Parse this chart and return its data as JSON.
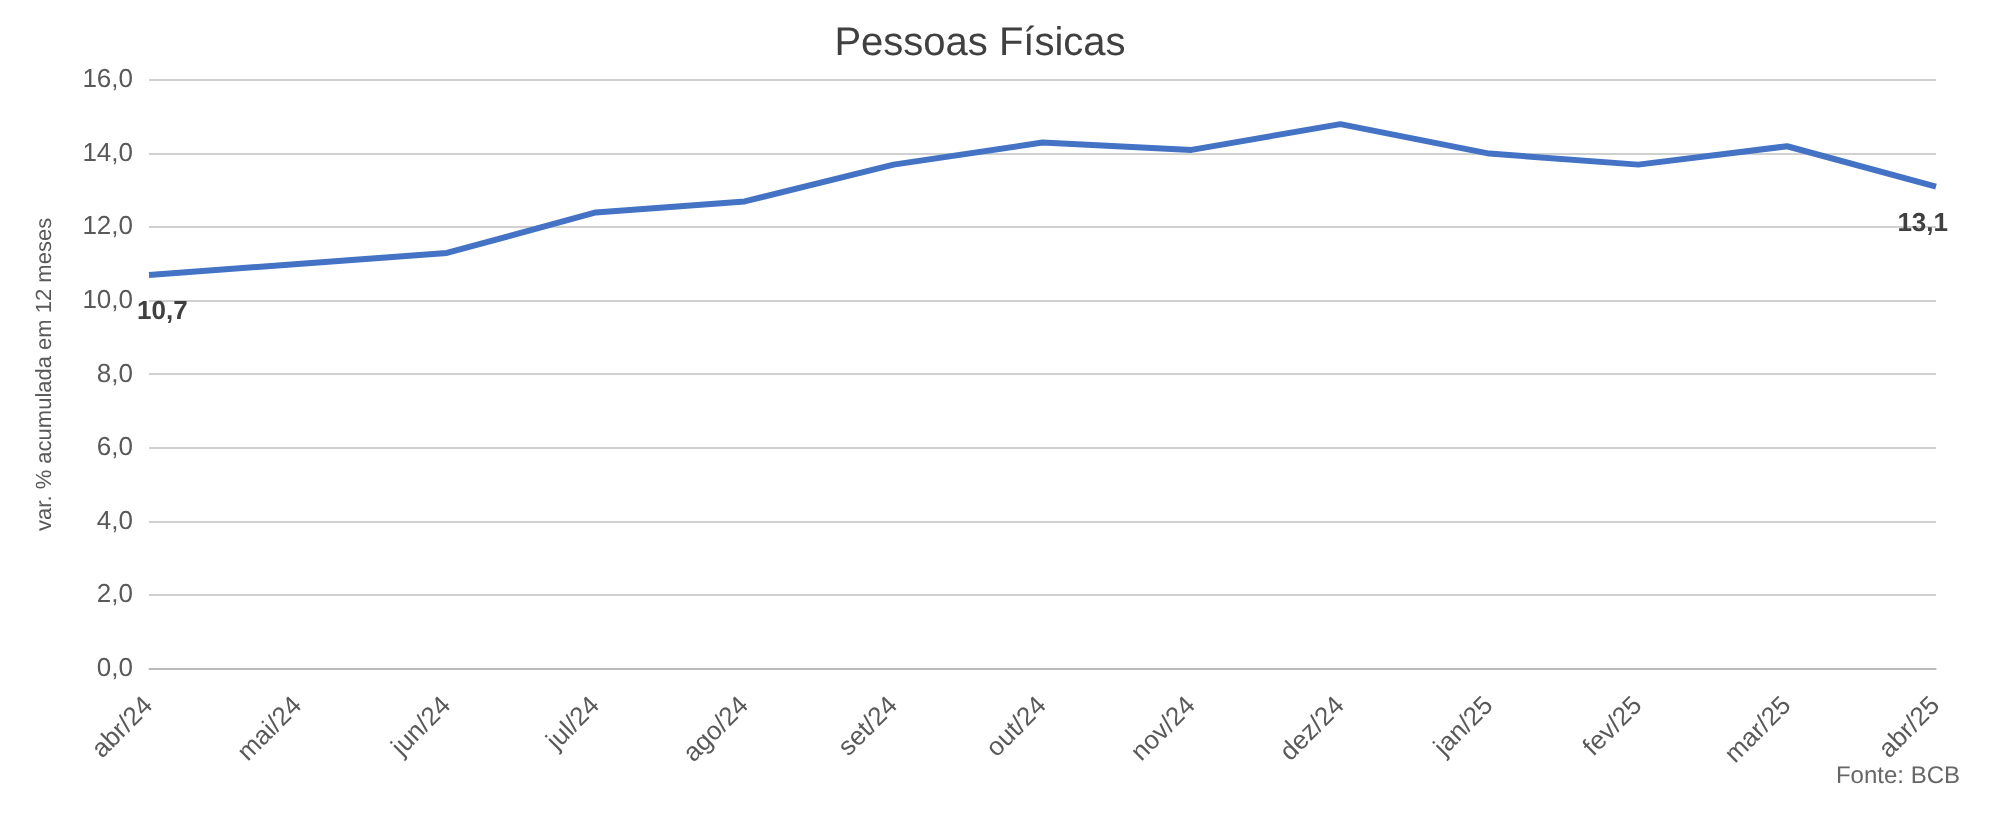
{
  "chart_data": {
    "type": "line",
    "title": "Pessoas Físicas",
    "ylabel": "var. % acumulada em 12 meses",
    "categories": [
      "abr/24",
      "mai/24",
      "jun/24",
      "jul/24",
      "ago/24",
      "set/24",
      "out/24",
      "nov/24",
      "dez/24",
      "jan/25",
      "fev/25",
      "mar/25",
      "abr/25"
    ],
    "series": [
      {
        "color": "#4472c4",
        "values": [
          10.7,
          11.0,
          11.3,
          12.4,
          12.7,
          13.7,
          14.3,
          14.1,
          14.8,
          14.0,
          13.7,
          14.2,
          13.1
        ],
        "value_labels": [
          "10,7",
          null,
          null,
          null,
          null,
          null,
          null,
          null,
          null,
          null,
          null,
          null,
          "13,1"
        ]
      }
    ],
    "ylim": [
      0,
      16
    ],
    "yticks": [
      {
        "value": 0,
        "label": "0,0"
      },
      {
        "value": 2,
        "label": "2,0"
      },
      {
        "value": 4,
        "label": "4,0"
      },
      {
        "value": 6,
        "label": "6,0"
      },
      {
        "value": 8,
        "label": "8,0"
      },
      {
        "value": 10,
        "label": "10,0"
      },
      {
        "value": 12,
        "label": "12,0"
      },
      {
        "value": 14,
        "label": "14,0"
      },
      {
        "value": 16,
        "label": "16,0"
      }
    ],
    "grid": "y",
    "legend": false,
    "marker": "none",
    "line_style": "solid",
    "annotations": [
      "Fonte: BCB"
    ]
  }
}
